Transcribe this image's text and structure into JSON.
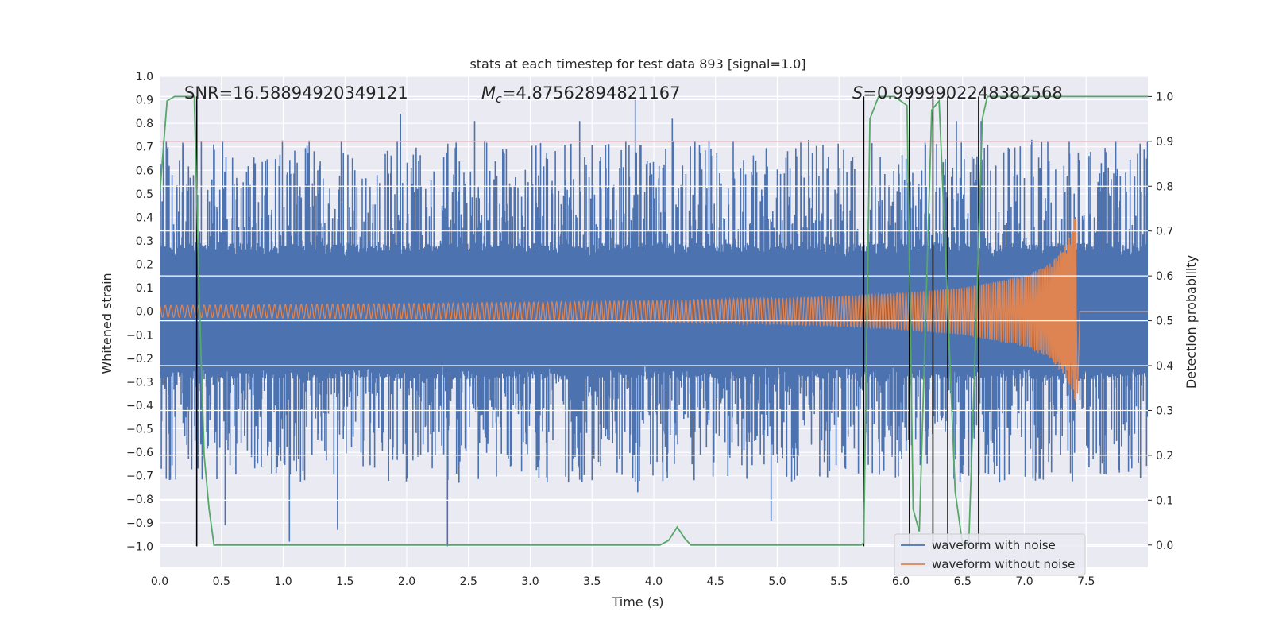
{
  "chart_data": {
    "type": "line",
    "title": "stats at each timestep for test data 893 [signal=1.0]",
    "xlabel": "Time (s)",
    "ylabel_left": "Whitened strain",
    "ylabel_right": "Detection probability",
    "xlim": [
      0.0,
      8.0
    ],
    "ylim_left": [
      -1.09,
      1.0
    ],
    "ylim_right": [
      -0.05,
      1.045
    ],
    "x_ticks": [
      0.0,
      0.5,
      1.0,
      1.5,
      2.0,
      2.5,
      3.0,
      3.5,
      4.0,
      4.5,
      5.0,
      5.5,
      6.0,
      6.5,
      7.0,
      7.5
    ],
    "x_tick_labels": [
      "0.0",
      "0.5",
      "1.0",
      "1.5",
      "2.0",
      "2.5",
      "3.0",
      "3.5",
      "4.0",
      "4.5",
      "5.0",
      "5.5",
      "6.0",
      "6.5",
      "7.0",
      "7.5"
    ],
    "y_left_ticks": [
      -1.0,
      -0.9,
      -0.8,
      -0.7,
      -0.6,
      -0.5,
      -0.4,
      -0.3,
      -0.2,
      -0.1,
      0.0,
      0.1,
      0.2,
      0.3,
      0.4,
      0.5,
      0.6,
      0.7,
      0.8,
      0.9,
      1.0
    ],
    "y_left_tick_labels": [
      "−1.0",
      "−0.9",
      "−0.8",
      "−0.7",
      "−0.6",
      "−0.5",
      "−0.4",
      "−0.3",
      "−0.2",
      "−0.1",
      "0.0",
      "0.1",
      "0.2",
      "0.3",
      "0.4",
      "0.5",
      "0.6",
      "0.7",
      "0.8",
      "0.9",
      "1.0"
    ],
    "y_right_ticks": [
      0.0,
      0.1,
      0.2,
      0.3,
      0.4,
      0.5,
      0.6,
      0.7,
      0.8,
      0.9,
      1.0
    ],
    "y_right_tick_labels": [
      "0.0",
      "0.1",
      "0.2",
      "0.3",
      "0.4",
      "0.5",
      "0.6",
      "0.7",
      "0.8",
      "0.9",
      "1.0"
    ],
    "annotations": {
      "snr": "SNR=16.58894920349121",
      "mc_symbol": "M",
      "mc_sub": "c",
      "mc_value": "=4.87562894821167",
      "s_symbol": "S",
      "s_value": "=0.9999902248382568"
    },
    "threshold": {
      "value": 0.9,
      "axis": "right",
      "color": "#c44e52"
    },
    "noisy_waveform": {
      "name": "waveform with noise",
      "color": "#4c72b0",
      "band_core": 0.23,
      "band_spike_max": 0.5,
      "notable_peaks": [
        {
          "x": 3.85,
          "y": 0.9
        },
        {
          "x": 1.95,
          "y": 0.84
        },
        {
          "x": 4.15,
          "y": 0.82
        },
        {
          "x": 2.55,
          "y": 0.81
        },
        {
          "x": 6.45,
          "y": 0.81
        },
        {
          "x": 6.65,
          "y": 0.81
        },
        {
          "x": 0.3,
          "y": 0.88
        },
        {
          "x": 3.4,
          "y": 0.81
        }
      ],
      "notable_troughs": [
        {
          "x": 2.33,
          "y": -1.0
        },
        {
          "x": 1.05,
          "y": -0.98
        },
        {
          "x": 1.44,
          "y": -0.93
        },
        {
          "x": 0.53,
          "y": -0.91
        },
        {
          "x": 4.95,
          "y": -0.89
        },
        {
          "x": 3.87,
          "y": -0.77
        }
      ]
    },
    "clean_waveform": {
      "name": "waveform without noise",
      "color": "#dd8452",
      "amplitude_start": 0.025,
      "amplitude_peak": 0.43,
      "merger_time": 7.42,
      "points": [
        [
          0.0,
          0.025
        ],
        [
          2.0,
          0.033
        ],
        [
          4.0,
          0.045
        ],
        [
          5.0,
          0.056
        ],
        [
          5.5,
          0.064
        ],
        [
          6.0,
          0.078
        ],
        [
          6.5,
          0.1
        ],
        [
          7.0,
          0.15
        ],
        [
          7.2,
          0.2
        ],
        [
          7.3,
          0.26
        ],
        [
          7.38,
          0.33
        ],
        [
          7.42,
          0.43
        ]
      ]
    },
    "detection_probability": {
      "color": "#55a868",
      "x": [
        0.0,
        0.06,
        0.12,
        0.18,
        0.24,
        0.28,
        0.32,
        0.36,
        0.4,
        0.44,
        4.05,
        4.12,
        4.19,
        4.25,
        4.3,
        5.68,
        5.7,
        5.75,
        5.82,
        5.88,
        5.95,
        6.05,
        6.1,
        6.15,
        6.2,
        6.25,
        6.31,
        6.37,
        6.44,
        6.5,
        6.55,
        6.61,
        6.66,
        6.7,
        6.75,
        8.0
      ],
      "y": [
        0.78,
        0.99,
        1.0,
        1.0,
        1.0,
        1.0,
        0.55,
        0.2,
        0.08,
        0.0,
        0.0,
        0.01,
        0.04,
        0.015,
        0.0,
        0.0,
        0.005,
        0.95,
        1.0,
        1.0,
        1.0,
        0.98,
        0.08,
        0.03,
        0.5,
        0.97,
        0.99,
        0.6,
        0.12,
        0.0,
        0.0,
        0.5,
        0.95,
        1.0,
        1.0,
        1.0
      ]
    },
    "event_markers": {
      "color": "#000000",
      "x": [
        0.3,
        5.7,
        6.07,
        6.26,
        6.38,
        6.63
      ],
      "y_bottom_left": -1.0,
      "y_top_right": 1.0
    },
    "legend": {
      "position": "lower-right",
      "entries": [
        {
          "label": "waveform with noise",
          "color": "#4c72b0"
        },
        {
          "label": "waveform without noise",
          "color": "#dd8452"
        }
      ]
    },
    "style": {
      "background": "#eaeaf2",
      "grid": true,
      "grid_color": "#ffffff"
    }
  }
}
